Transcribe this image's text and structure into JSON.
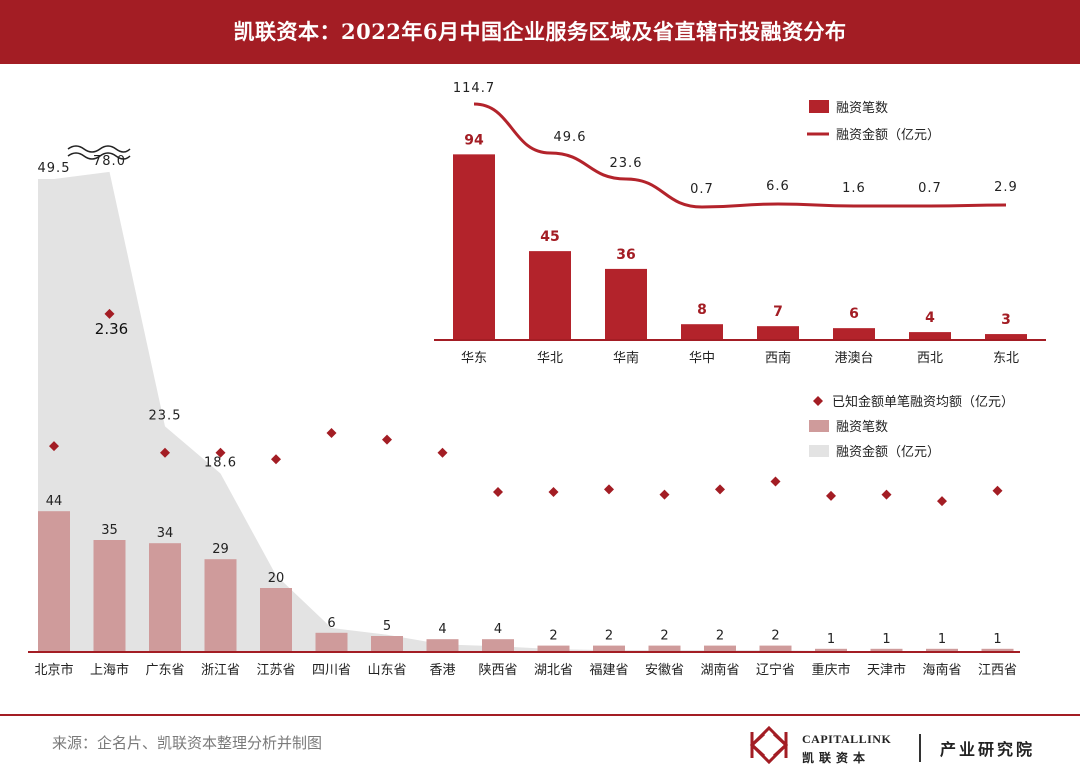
{
  "header": {
    "title": "凯联资本：2022年6月中国企业服务区域及省直辖市投融资分布"
  },
  "chart_data": [
    {
      "type": "bar+line",
      "categories": [
        "华东",
        "华北",
        "华南",
        "华中",
        "西南",
        "港澳台",
        "西北",
        "东北"
      ],
      "series": [
        {
          "name": "融资笔数",
          "type": "bar",
          "values": [
            94,
            45,
            36,
            8,
            7,
            6,
            4,
            3
          ]
        },
        {
          "name": "融资金额（亿元）",
          "type": "line",
          "values": [
            114.7,
            49.6,
            23.6,
            0.7,
            6.6,
            1.6,
            0.7,
            2.9
          ]
        }
      ],
      "value_labels": {
        "bar": [
          "94",
          "45",
          "36",
          "8",
          "7",
          "6",
          "4",
          "3"
        ],
        "line": [
          "114.7",
          "49.6",
          "23.6",
          "0.7",
          "6.6",
          "1.6",
          "0.7",
          "2.9"
        ]
      },
      "legend_position": "top-right"
    },
    {
      "type": "bar+area+scatter",
      "categories": [
        "北京市",
        "上海市",
        "广东省",
        "浙江省",
        "江苏省",
        "四川省",
        "山东省",
        "香港",
        "陕西省",
        "湖北省",
        "福建省",
        "安徽省",
        "湖南省",
        "辽宁省",
        "重庆市",
        "天津市",
        "海南省",
        "江西省"
      ],
      "series": [
        {
          "name": "融资笔数",
          "type": "bar",
          "values": [
            44,
            35,
            34,
            29,
            20,
            6,
            5,
            4,
            4,
            2,
            2,
            2,
            2,
            2,
            1,
            1,
            1,
            1
          ]
        },
        {
          "name": "融资金额（亿元）",
          "type": "area",
          "values": [
            49.5,
            78.0,
            23.5,
            18.6,
            8.0,
            2.5,
            1.8,
            0.8,
            0.6,
            0.3,
            0.2,
            0.2,
            0.2,
            0.2,
            0.1,
            0.1,
            0.1,
            0.1
          ]
        },
        {
          "name": "已知金额单笔融资均额（亿元）",
          "type": "scatter",
          "values": [
            1.35,
            2.36,
            1.3,
            1.3,
            1.25,
            1.45,
            1.4,
            1.3,
            1.0,
            1.0,
            1.02,
            0.98,
            1.02,
            1.08,
            0.97,
            0.98,
            0.93,
            1.01
          ]
        }
      ],
      "value_labels": {
        "bar": [
          "44",
          "35",
          "34",
          "29",
          "20",
          "6",
          "5",
          "4",
          "4",
          "2",
          "2",
          "2",
          "2",
          "2",
          "1",
          "1",
          "1",
          "1"
        ],
        "area": [
          {
            "index": 0,
            "text": "49.5"
          },
          {
            "index": 1,
            "text": "78.0"
          },
          {
            "index": 2,
            "text": "23.5"
          },
          {
            "index": 3,
            "text": "18.6"
          }
        ],
        "scatter": [
          {
            "index": 1,
            "text": "2.36"
          }
        ]
      },
      "axis_break": true,
      "legend_position": "right"
    }
  ],
  "footer": {
    "source": "来源：企名片、凯联资本整理分析并制图",
    "brand_en": "CAPITALLINK",
    "brand_cn": "凯联资本",
    "institute": "产业研究院"
  },
  "colors": {
    "brand_red": "#a31d24",
    "bar_main": "#b3232b",
    "bar_pink": "#cf9b9b",
    "area_gray": "#e3e3e3",
    "diamond": "#a31d24"
  }
}
